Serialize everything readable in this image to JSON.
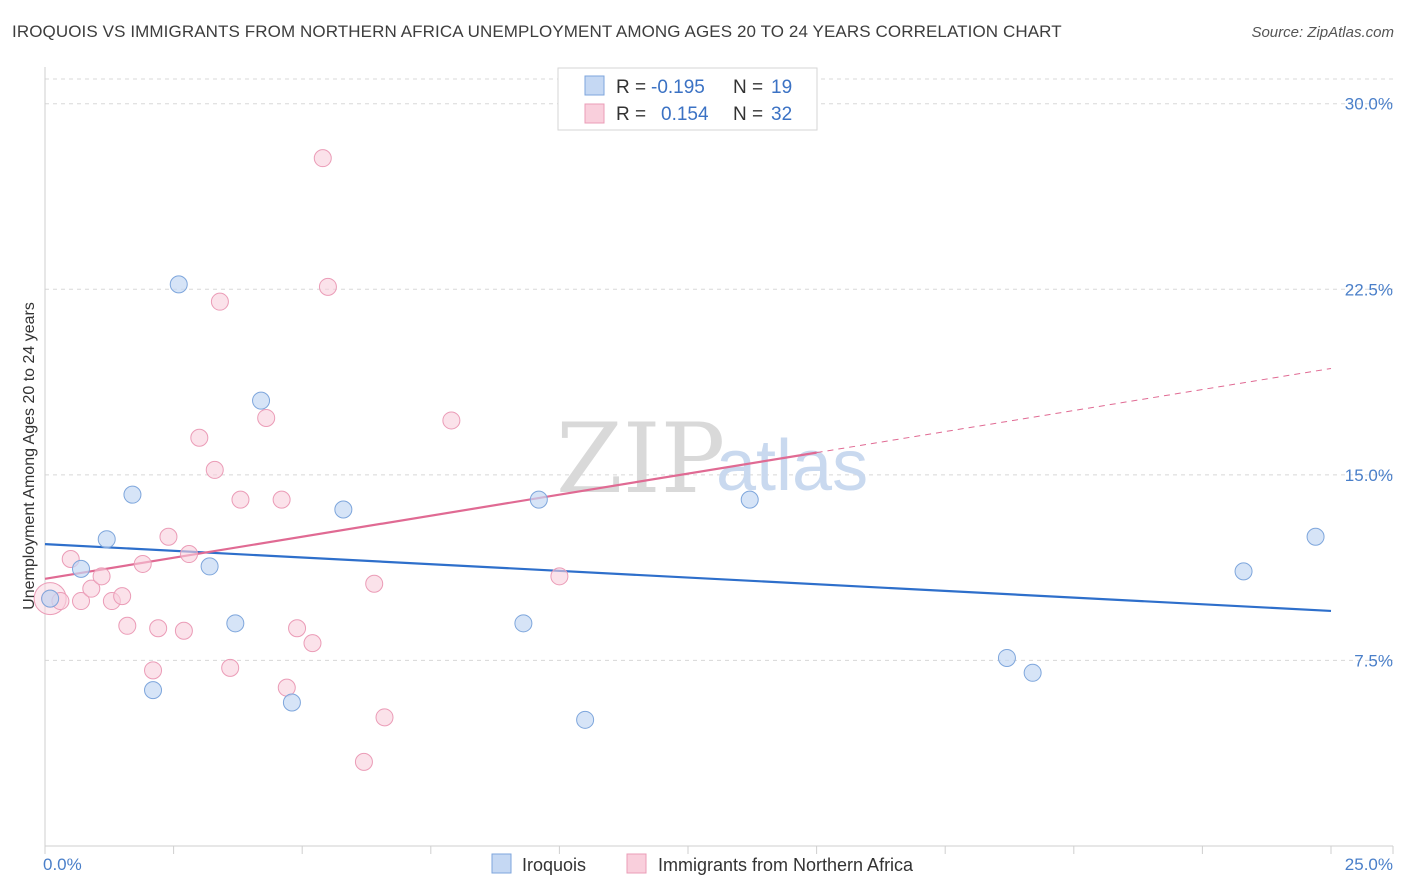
{
  "title": "IROQUOIS VS IMMIGRANTS FROM NORTHERN AFRICA UNEMPLOYMENT AMONG AGES 20 TO 24 YEARS CORRELATION CHART",
  "source": "Source: ZipAtlas.com",
  "watermark": {
    "zip": "ZIP",
    "atlas": "atlas"
  },
  "colors": {
    "iroquois_fill": "#c5d8f3",
    "iroquois_stroke": "#7ea6dc",
    "iroquois_line": "#2e6fcb",
    "immigrants_fill": "#f9cfdc",
    "immigrants_stroke": "#eb9cb7",
    "immigrants_line": "#e06a93",
    "grid": "#d8d8d8",
    "axis_text": "#4a7fc9"
  },
  "legend": {
    "rows": [
      {
        "r_label": "R =",
        "r_value": "-0.195",
        "n_label": "N =",
        "n_value": "19"
      },
      {
        "r_label": "R =",
        "r_value": "0.154",
        "n_label": "N =",
        "n_value": "32"
      }
    ]
  },
  "chart_data": {
    "type": "scatter",
    "title": "IROQUOIS VS IMMIGRANTS FROM NORTHERN AFRICA UNEMPLOYMENT AMONG AGES 20 TO 24 YEARS CORRELATION CHART",
    "xlabel": "",
    "ylabel": "Unemployment Among Ages 20 to 24 years",
    "xlim": [
      0,
      25
    ],
    "ylim": [
      0,
      31
    ],
    "x_tick_labels": [
      "0.0%",
      "25.0%"
    ],
    "y_ticks": [
      7.5,
      15.0,
      22.5,
      30.0
    ],
    "y_tick_labels": [
      "7.5%",
      "15.0%",
      "22.5%",
      "30.0%"
    ],
    "grid": "horizontal dashed",
    "legend_position": "top-center",
    "series": [
      {
        "name": "Iroquois",
        "color": "#c5d8f3",
        "points": [
          [
            0.1,
            10.0
          ],
          [
            0.7,
            11.2
          ],
          [
            1.2,
            12.4
          ],
          [
            1.7,
            14.2
          ],
          [
            2.1,
            6.3
          ],
          [
            2.6,
            22.7
          ],
          [
            3.2,
            11.3
          ],
          [
            3.7,
            9.0
          ],
          [
            4.2,
            18.0
          ],
          [
            4.8,
            5.8
          ],
          [
            5.8,
            13.6
          ],
          [
            9.3,
            9.0
          ],
          [
            9.6,
            14.0
          ],
          [
            10.5,
            5.1
          ],
          [
            13.7,
            14.0
          ],
          [
            18.7,
            7.6
          ],
          [
            19.2,
            7.0
          ],
          [
            23.3,
            11.1
          ],
          [
            24.7,
            12.5
          ]
        ],
        "trend": {
          "x": [
            0,
            25
          ],
          "y": [
            12.2,
            9.5
          ]
        }
      },
      {
        "name": "Immigrants from Northern Africa",
        "color": "#f9cfdc",
        "points": [
          [
            0.1,
            10.0
          ],
          [
            0.3,
            9.9
          ],
          [
            0.5,
            11.6
          ],
          [
            0.7,
            9.9
          ],
          [
            0.9,
            10.4
          ],
          [
            1.1,
            10.9
          ],
          [
            1.3,
            9.9
          ],
          [
            1.5,
            10.1
          ],
          [
            1.6,
            8.9
          ],
          [
            1.9,
            11.4
          ],
          [
            2.1,
            7.1
          ],
          [
            2.2,
            8.8
          ],
          [
            2.4,
            12.5
          ],
          [
            2.7,
            8.7
          ],
          [
            2.8,
            11.8
          ],
          [
            3.0,
            16.5
          ],
          [
            3.3,
            15.2
          ],
          [
            3.4,
            22.0
          ],
          [
            3.6,
            7.2
          ],
          [
            3.8,
            14.0
          ],
          [
            4.3,
            17.3
          ],
          [
            4.6,
            14.0
          ],
          [
            4.7,
            6.4
          ],
          [
            4.9,
            8.8
          ],
          [
            5.2,
            8.2
          ],
          [
            5.4,
            27.8
          ],
          [
            5.5,
            22.6
          ],
          [
            6.2,
            3.4
          ],
          [
            6.4,
            10.6
          ],
          [
            6.6,
            5.2
          ],
          [
            7.9,
            17.2
          ],
          [
            10.0,
            10.9
          ]
        ],
        "trend": {
          "x": [
            0,
            15
          ],
          "y": [
            10.8,
            15.9
          ],
          "dashed_extension": {
            "x": [
              15,
              25
            ],
            "y": [
              15.9,
              19.3
            ]
          }
        }
      }
    ]
  },
  "bottom_legend": {
    "items": [
      {
        "label": "Iroquois"
      },
      {
        "label": "Immigrants from Northern Africa"
      }
    ]
  }
}
